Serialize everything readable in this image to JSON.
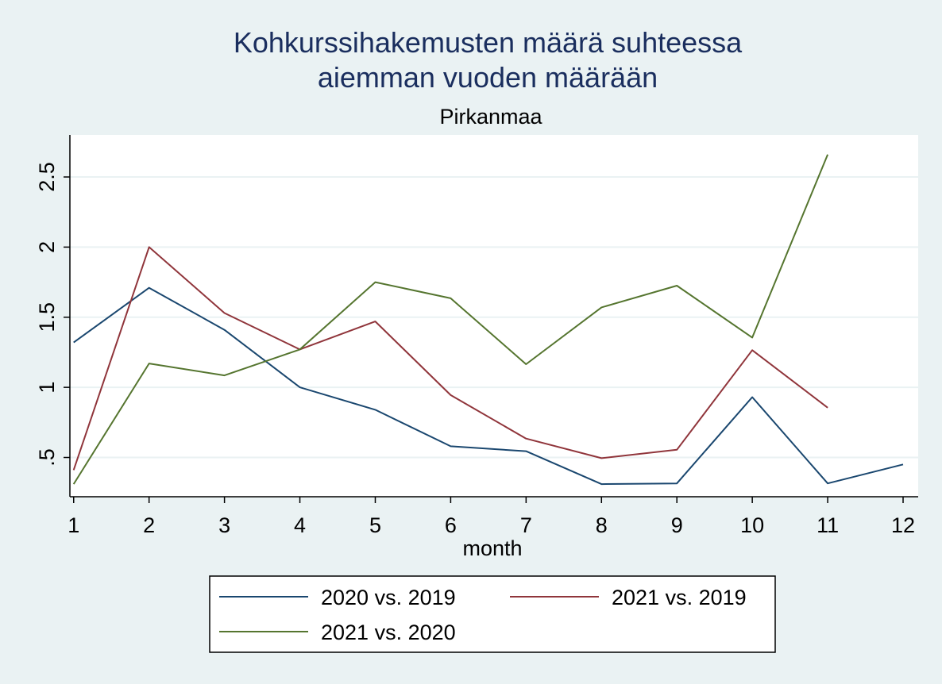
{
  "chart_data": {
    "type": "line",
    "title": [
      "Kohkurssihakemusten määrä suhteessa",
      "aiemman vuoden määrään"
    ],
    "subtitle": "Pirkanmaa",
    "xlabel": "month",
    "ylabel": "",
    "x": [
      1,
      2,
      3,
      4,
      5,
      6,
      7,
      8,
      9,
      10,
      11,
      12
    ],
    "xticks": [
      "1",
      "2",
      "3",
      "4",
      "5",
      "6",
      "7",
      "8",
      "9",
      "10",
      "11",
      "12"
    ],
    "yticks": [
      {
        "value": 0.5,
        "label": ".5"
      },
      {
        "value": 1,
        "label": "1"
      },
      {
        "value": 1.5,
        "label": "1.5"
      },
      {
        "value": 2,
        "label": "2"
      },
      {
        "value": 2.5,
        "label": "2.5"
      }
    ],
    "xlim": [
      0.95,
      12.2
    ],
    "ylim": [
      0.22,
      2.8
    ],
    "grid": true,
    "legend_position": "bottom",
    "series": [
      {
        "name": "2020 vs. 2019",
        "color": "#1a476f",
        "values": [
          1.32,
          1.71,
          1.41,
          1.0,
          0.84,
          0.58,
          0.545,
          0.31,
          0.315,
          0.93,
          0.315,
          0.45
        ]
      },
      {
        "name": "2021 vs. 2019",
        "color": "#90353b",
        "values": [
          0.41,
          2.0,
          1.53,
          1.27,
          1.47,
          0.945,
          0.635,
          0.495,
          0.555,
          1.265,
          0.855,
          null
        ]
      },
      {
        "name": "2021 vs. 2020",
        "color": "#55752f",
        "values": [
          0.31,
          1.17,
          1.085,
          1.27,
          1.75,
          1.635,
          1.165,
          1.57,
          1.725,
          1.355,
          2.66,
          null
        ]
      }
    ]
  }
}
